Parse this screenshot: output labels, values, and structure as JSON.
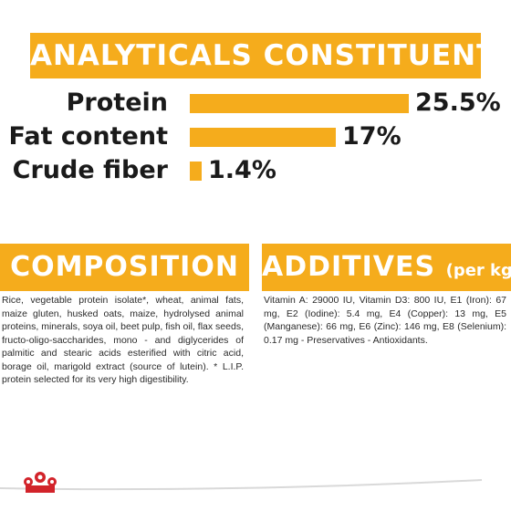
{
  "analytics": {
    "title": "ANALYTICALS CONSTITUENTS",
    "rows": [
      {
        "label": "Protein",
        "value": "25.5%",
        "fraction": 1.0
      },
      {
        "label": "Fat content",
        "value": "17%",
        "fraction": 0.667
      },
      {
        "label": "Crude fiber",
        "value": "1.4%",
        "fraction": 0.055
      }
    ]
  },
  "composition": {
    "title": "COMPOSITION",
    "text": "Rice, vegetable protein isolate*, wheat, animal fats, maize gluten, husked oats, maize, hydrolysed animal proteins, minerals, soya oil, beet pulp, fish oil, flax seeds, fructo-oligo-saccharides, mono - and diglycerides of palmitic and stearic acids esterified with citric acid, borage oil, marigold extract (source of lutein). * L.I.P. protein selected for its very high digestibility."
  },
  "additives": {
    "title": "ADDITIVES",
    "subtitle": "(per kg)",
    "text": "Vitamin A: 29000 IU, Vitamin D3: 800 IU, E1 (Iron): 67 mg, E2 (Iodine): 5.4 mg, E4 (Copper): 13 mg, E5 (Manganese): 66 mg, E6 (Zinc): 146 mg, E8 (Selenium): 0.17 mg - Preservatives - Antioxidants."
  },
  "colors": {
    "accent": "#f5ac1c",
    "brand_red": "#d2232a"
  },
  "logo": {
    "icon": "royal-canin-crown-icon"
  }
}
